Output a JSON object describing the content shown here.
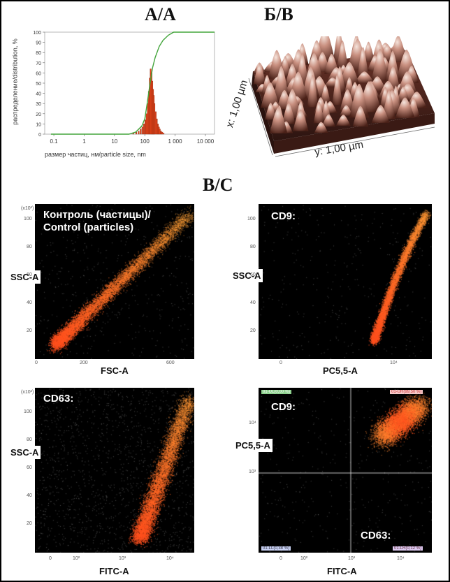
{
  "panel_titles": {
    "a": "А/А",
    "b": "Б/В",
    "c": "В/С"
  },
  "chart_data": {
    "type": "histogram+line",
    "xscale": "log",
    "xlim": [
      0.05,
      20000
    ],
    "ylim": [
      0,
      100
    ],
    "xticks": [
      "0.1",
      "1",
      "10",
      "100",
      "1 000",
      "10 000"
    ],
    "yticks": [
      "0",
      "10",
      "20",
      "30",
      "40",
      "50",
      "60",
      "70",
      "80",
      "90",
      "100"
    ],
    "xlabel": "размер частиц, нм/particle size, nm",
    "ylabel": "распределение/distribution, %",
    "histogram": {
      "x": [
        40,
        50,
        60,
        70,
        80,
        90,
        100,
        110,
        120,
        130,
        140,
        150,
        160,
        170,
        180,
        190,
        200,
        220,
        240,
        260,
        280,
        300,
        330,
        360,
        400
      ],
      "values": [
        1,
        2,
        3,
        5,
        7,
        10,
        14,
        20,
        30,
        42,
        55,
        64,
        60,
        52,
        44,
        38,
        30,
        22,
        15,
        10,
        7,
        5,
        3,
        2,
        1
      ]
    },
    "cumulative": {
      "x": [
        0.08,
        30,
        50,
        80,
        100,
        120,
        150,
        180,
        220,
        300,
        400,
        600,
        900,
        20000
      ],
      "values": [
        0,
        0,
        2,
        8,
        15,
        30,
        50,
        65,
        75,
        86,
        92,
        97,
        100,
        100
      ]
    }
  },
  "afm": {
    "xlabel": "x: 1,00 µm",
    "ylabel": "y: 1,00 µm"
  },
  "cytometry": {
    "p1": {
      "title_line1": "Контроль (частицы)/",
      "title_line2": "Control (particles)",
      "ylabel": "SSC-A",
      "xlabel": "FSC-A",
      "xticks": [
        "0",
        "200",
        "600"
      ],
      "yticks": [
        "20",
        "40",
        "60",
        "80",
        "100"
      ],
      "yunit": "(x10³)"
    },
    "p2": {
      "title": "CD9:",
      "ylabel": "SSC-A",
      "xlabel": "PC5,5-A",
      "xticks": [
        "0",
        "10⁴"
      ],
      "yticks": [
        "20",
        "40",
        "60",
        "80",
        "100"
      ]
    },
    "p3": {
      "title": "CD63:",
      "ylabel": "SSC-A",
      "xlabel": "FITC-A",
      "xticks": [
        "0",
        "10²",
        "10³",
        "10⁴"
      ],
      "yticks": [
        "20",
        "40",
        "60",
        "80",
        "100"
      ],
      "yunit": "(x10³)"
    },
    "p4": {
      "title1": "CD9:",
      "title2": "CD63:",
      "ylabel": "PC5,5-A",
      "xlabel": "FITC-A",
      "xticks": [
        "0",
        "10²",
        "10³",
        "10⁴"
      ],
      "yticks": [
        "10³",
        "10⁴"
      ],
      "quad_ul": "01-UL(0,00 %)",
      "quad_ur": "01-UR(99,50 %)",
      "quad_ll": "01-LL(0,38 %)",
      "quad_lr": "01-LR(0,12 %)"
    }
  },
  "colors": {
    "accent": "#e8441a",
    "green": "#44a53c"
  }
}
